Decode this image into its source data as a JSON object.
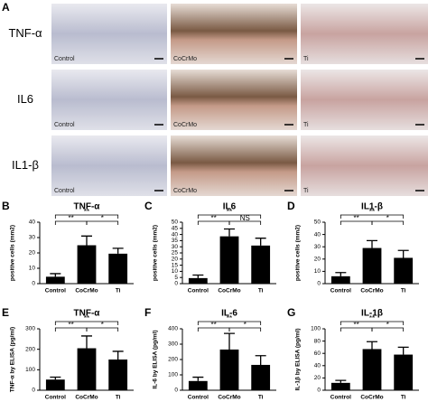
{
  "figure": {
    "image_panel": {
      "letter": "A",
      "rows": [
        "TNF-α",
        "IL6",
        "IL1-β"
      ],
      "columns": [
        "Control",
        "CoCrMo",
        "Ti"
      ]
    }
  },
  "chart_data": [
    {
      "type": "bar",
      "letter": "B",
      "title": "TNF-α",
      "y_label": "positive cells (mm2)",
      "categories": [
        "Control",
        "CoCrMo",
        "Ti"
      ],
      "values": [
        4.5,
        25,
        19.5
      ],
      "errors": [
        2,
        6,
        3.5
      ],
      "color": "#000000",
      "ylim": [
        0,
        40
      ],
      "yticks": [
        0,
        10,
        20,
        30,
        40
      ],
      "significance": [
        {
          "label": "**",
          "pair": [
            "Control",
            "CoCrMo"
          ]
        },
        {
          "label": "*",
          "pair": [
            "CoCrMo",
            "Ti"
          ]
        },
        {
          "label": "**",
          "pair": [
            "Control",
            "Ti"
          ]
        }
      ]
    },
    {
      "type": "bar",
      "letter": "C",
      "title": "IL6",
      "y_label": "positive cells (mm2)",
      "categories": [
        "Control",
        "CoCrMo",
        "Ti"
      ],
      "values": [
        4.5,
        38.5,
        31
      ],
      "errors": [
        2.5,
        6,
        6
      ],
      "color": "#000000",
      "ylim": [
        0,
        50
      ],
      "yticks": [
        0,
        5,
        10,
        15,
        20,
        25,
        30,
        35,
        40,
        45,
        50
      ],
      "significance": [
        {
          "label": "**",
          "pair": [
            "Control",
            "CoCrMo"
          ]
        },
        {
          "label": "NS",
          "pair": [
            "CoCrMo",
            "Ti"
          ]
        },
        {
          "label": "**",
          "pair": [
            "Control",
            "Ti"
          ]
        }
      ]
    },
    {
      "type": "bar",
      "letter": "D",
      "title": "IL1-β",
      "y_label": "positive cells (mm2)",
      "categories": [
        "Control",
        "CoCrMo",
        "Ti"
      ],
      "values": [
        6,
        29,
        21
      ],
      "errors": [
        3,
        6,
        6
      ],
      "color": "#000000",
      "ylim": [
        0,
        50
      ],
      "yticks": [
        0,
        10,
        20,
        30,
        40,
        50
      ],
      "significance": [
        {
          "label": "**",
          "pair": [
            "Control",
            "CoCrMo"
          ]
        },
        {
          "label": "*",
          "pair": [
            "CoCrMo",
            "Ti"
          ]
        },
        {
          "label": "**",
          "pair": [
            "Control",
            "Ti"
          ]
        }
      ]
    },
    {
      "type": "bar",
      "letter": "E",
      "title": "TNF-α",
      "y_label": "TNF-α by ELISA (pg/ml)",
      "categories": [
        "Control",
        "CoCrMo",
        "Ti"
      ],
      "values": [
        52,
        205,
        150
      ],
      "errors": [
        12,
        60,
        40
      ],
      "color": "#000000",
      "ylim": [
        0,
        300
      ],
      "yticks": [
        0,
        100,
        200,
        300
      ],
      "significance": [
        {
          "label": "**",
          "pair": [
            "Control",
            "CoCrMo"
          ]
        },
        {
          "label": "*",
          "pair": [
            "CoCrMo",
            "Ti"
          ]
        },
        {
          "label": "**",
          "pair": [
            "Control",
            "Ti"
          ]
        }
      ]
    },
    {
      "type": "bar",
      "letter": "F",
      "title": "IL-6",
      "y_label": "IL-6 by ELISA (pg/ml)",
      "categories": [
        "Control",
        "CoCrMo",
        "Ti"
      ],
      "values": [
        60,
        265,
        165
      ],
      "errors": [
        25,
        105,
        60
      ],
      "color": "#000000",
      "ylim": [
        0,
        400
      ],
      "yticks": [
        0,
        100,
        200,
        300,
        400
      ],
      "significance": [
        {
          "label": "**",
          "pair": [
            "Control",
            "CoCrMo"
          ]
        },
        {
          "label": "*",
          "pair": [
            "CoCrMo",
            "Ti"
          ]
        },
        {
          "label": "**",
          "pair": [
            "Control",
            "Ti"
          ]
        }
      ]
    },
    {
      "type": "bar",
      "letter": "G",
      "title": "IL-1β",
      "y_label": "IL-1β by ELISA (pg/ml)",
      "categories": [
        "Control",
        "CoCrMo",
        "Ti"
      ],
      "values": [
        12,
        67,
        58
      ],
      "errors": [
        4,
        12,
        12
      ],
      "color": "#000000",
      "ylim": [
        0,
        100
      ],
      "yticks": [
        0,
        20,
        40,
        60,
        80,
        100
      ],
      "significance": [
        {
          "label": "**",
          "pair": [
            "Control",
            "CoCrMo"
          ]
        },
        {
          "label": "*",
          "pair": [
            "CoCrMo",
            "Ti"
          ]
        },
        {
          "label": "**",
          "pair": [
            "Control",
            "Ti"
          ]
        }
      ]
    }
  ]
}
